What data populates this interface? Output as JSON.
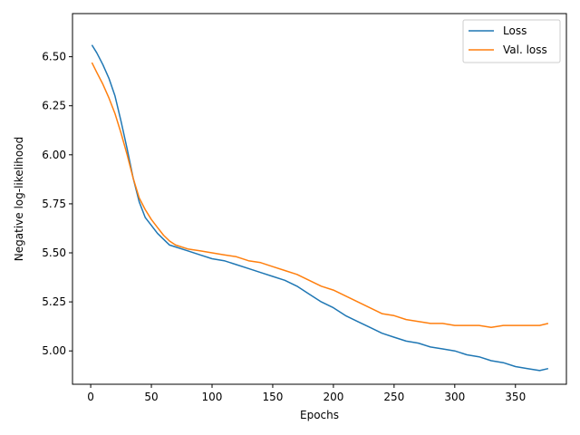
{
  "chart_data": {
    "type": "line",
    "xlabel": "Epochs",
    "ylabel": "Negative log-likelihood",
    "xlim": [
      -15,
      392
    ],
    "ylim": [
      4.83,
      6.72
    ],
    "xticks": [
      0,
      50,
      100,
      150,
      200,
      250,
      300,
      350
    ],
    "yticks": [
      5.0,
      5.25,
      5.5,
      5.75,
      6.0,
      6.25,
      6.5
    ],
    "xtick_labels": [
      "0",
      "50",
      "100",
      "150",
      "200",
      "250",
      "300",
      "350"
    ],
    "ytick_labels": [
      "5.00",
      "5.25",
      "5.50",
      "5.75",
      "6.00",
      "6.25",
      "6.50"
    ],
    "grid": false,
    "legend_position": "top-right",
    "series": [
      {
        "name": "Loss",
        "color": "#1f77b4",
        "x": [
          1,
          5,
          10,
          15,
          20,
          25,
          30,
          35,
          40,
          45,
          50,
          55,
          60,
          65,
          70,
          80,
          90,
          100,
          110,
          120,
          130,
          140,
          150,
          160,
          170,
          180,
          190,
          200,
          210,
          220,
          230,
          240,
          250,
          260,
          270,
          280,
          290,
          300,
          310,
          320,
          330,
          340,
          350,
          360,
          370,
          377
        ],
        "y": [
          6.56,
          6.52,
          6.46,
          6.39,
          6.3,
          6.17,
          6.03,
          5.88,
          5.76,
          5.68,
          5.64,
          5.6,
          5.57,
          5.54,
          5.53,
          5.51,
          5.49,
          5.47,
          5.46,
          5.44,
          5.42,
          5.4,
          5.38,
          5.36,
          5.33,
          5.29,
          5.25,
          5.22,
          5.18,
          5.15,
          5.12,
          5.09,
          5.07,
          5.05,
          5.04,
          5.02,
          5.01,
          5.0,
          4.98,
          4.97,
          4.95,
          4.94,
          4.92,
          4.91,
          4.9,
          4.91
        ]
      },
      {
        "name": "Val. loss",
        "color": "#ff7f0e",
        "x": [
          1,
          5,
          10,
          15,
          20,
          25,
          30,
          35,
          40,
          45,
          50,
          55,
          60,
          65,
          70,
          80,
          90,
          100,
          110,
          120,
          130,
          140,
          150,
          160,
          170,
          180,
          190,
          200,
          210,
          220,
          230,
          240,
          250,
          260,
          270,
          280,
          290,
          300,
          310,
          320,
          330,
          340,
          350,
          360,
          370,
          377
        ],
        "y": [
          6.47,
          6.42,
          6.36,
          6.29,
          6.21,
          6.11,
          6.0,
          5.88,
          5.78,
          5.72,
          5.67,
          5.63,
          5.59,
          5.56,
          5.54,
          5.52,
          5.51,
          5.5,
          5.49,
          5.48,
          5.46,
          5.45,
          5.43,
          5.41,
          5.39,
          5.36,
          5.33,
          5.31,
          5.28,
          5.25,
          5.22,
          5.19,
          5.18,
          5.16,
          5.15,
          5.14,
          5.14,
          5.13,
          5.13,
          5.13,
          5.12,
          5.13,
          5.13,
          5.13,
          5.13,
          5.14
        ]
      }
    ]
  }
}
